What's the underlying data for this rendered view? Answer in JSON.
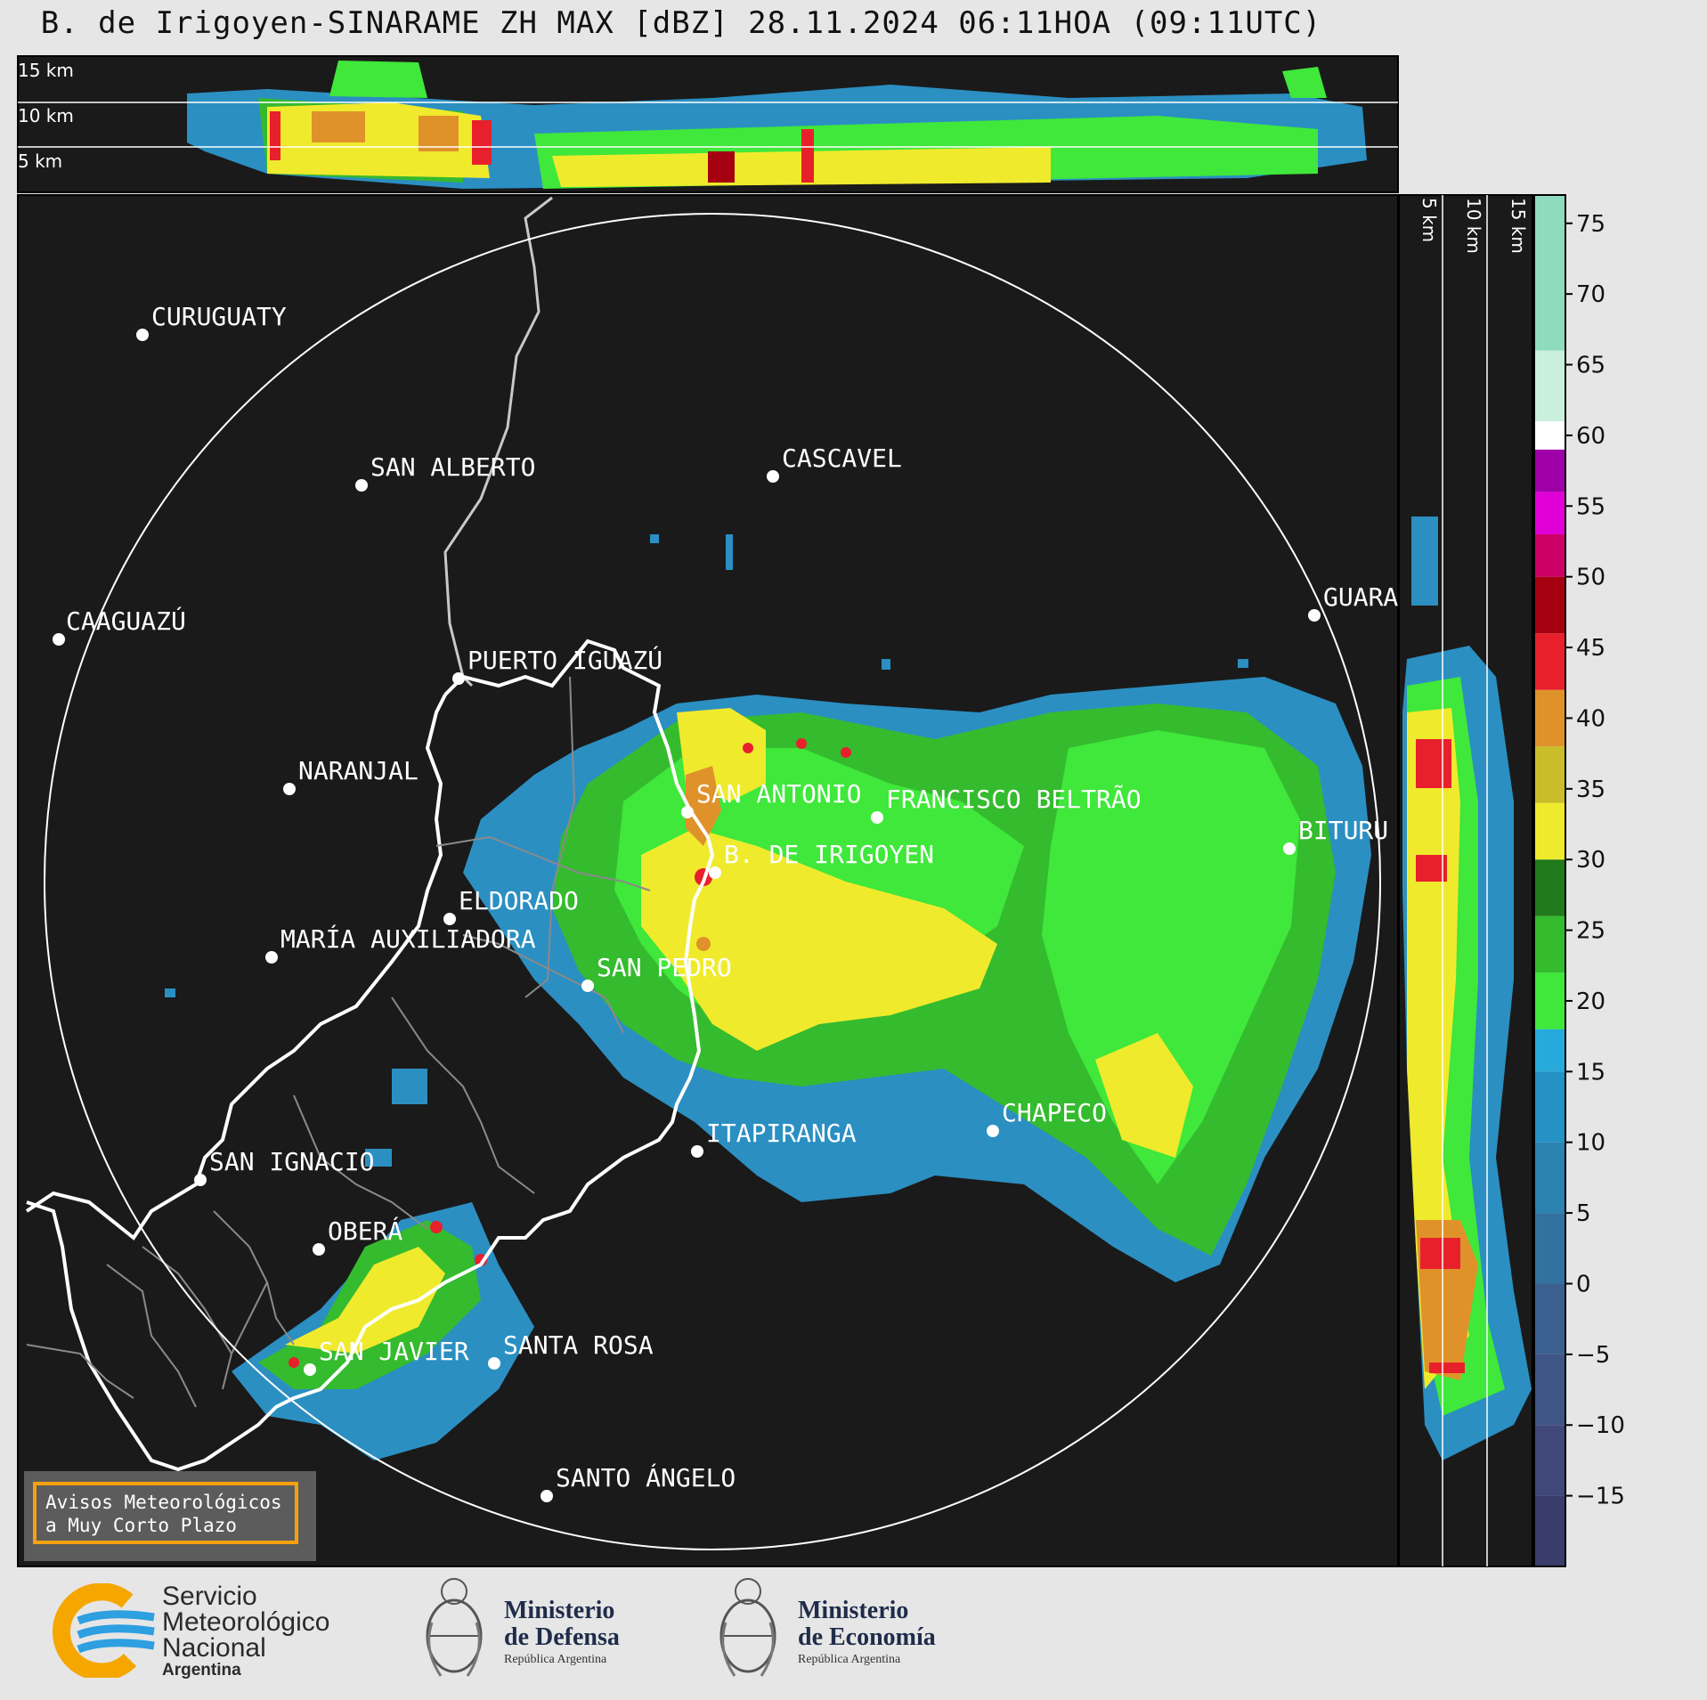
{
  "title": "B. de Irigoyen-SINARAME ZH MAX [dBZ] 28.11.2024 06:11HOA (09:11UTC)",
  "top_panel": {
    "height_labels": [
      "15 km",
      "10 km",
      "5 km"
    ]
  },
  "side_panel": {
    "height_labels": [
      "5 km",
      "10 km",
      "15 km"
    ]
  },
  "cities": [
    {
      "name": "CURUGUATY"
    },
    {
      "name": "SAN ALBERTO"
    },
    {
      "name": "CASCAVEL"
    },
    {
      "name": "CAAGUAZÚ"
    },
    {
      "name": "GUARA"
    },
    {
      "name": "PUERTO IGUAZÚ"
    },
    {
      "name": "NARANJAL"
    },
    {
      "name": "SAN ANTONIO"
    },
    {
      "name": "FRANCISCO BELTRÃO"
    },
    {
      "name": "BITURU"
    },
    {
      "name": "B. DE IRIGOYEN"
    },
    {
      "name": "ELDORADO"
    },
    {
      "name": "MARÍA AUXILIADORA"
    },
    {
      "name": "SAN PEDRO"
    },
    {
      "name": "CHAPECO"
    },
    {
      "name": "ITAPIRANGA"
    },
    {
      "name": "SAN IGNACIO"
    },
    {
      "name": "OBERÁ"
    },
    {
      "name": "SAN JAVIER"
    },
    {
      "name": "SANTA ROSA"
    },
    {
      "name": "SANTO ÁNGELO"
    }
  ],
  "colorbar": {
    "unit": "dBZ",
    "range": [
      -20,
      77
    ],
    "ticks": [
      "75",
      "70",
      "65",
      "60",
      "55",
      "50",
      "45",
      "40",
      "35",
      "30",
      "25",
      "20",
      "15",
      "10",
      "5",
      "0",
      "−5",
      "−10",
      "−15"
    ],
    "stops": [
      {
        "from": -20,
        "to": -15,
        "color": "#3a3d6b"
      },
      {
        "from": -15,
        "to": -10,
        "color": "#3f4878"
      },
      {
        "from": -10,
        "to": -5,
        "color": "#3f5585"
      },
      {
        "from": -5,
        "to": 0,
        "color": "#3b6090"
      },
      {
        "from": 0,
        "to": 5,
        "color": "#33729f"
      },
      {
        "from": 5,
        "to": 10,
        "color": "#2c82b1"
      },
      {
        "from": 10,
        "to": 15,
        "color": "#2592c4"
      },
      {
        "from": 15,
        "to": 18,
        "color": "#27aadb"
      },
      {
        "from": 18,
        "to": 22,
        "color": "#3fe83a"
      },
      {
        "from": 22,
        "to": 26,
        "color": "#35bb2e"
      },
      {
        "from": 26,
        "to": 30,
        "color": "#217a1c"
      },
      {
        "from": 30,
        "to": 34,
        "color": "#f0ea2d"
      },
      {
        "from": 34,
        "to": 38,
        "color": "#c9be2a"
      },
      {
        "from": 38,
        "to": 42,
        "color": "#e0922a"
      },
      {
        "from": 42,
        "to": 46,
        "color": "#e8202c"
      },
      {
        "from": 46,
        "to": 50,
        "color": "#a5000f"
      },
      {
        "from": 50,
        "to": 53,
        "color": "#cc0066"
      },
      {
        "from": 53,
        "to": 56,
        "color": "#e000d6"
      },
      {
        "from": 56,
        "to": 59,
        "color": "#a000a8"
      },
      {
        "from": 59,
        "to": 61,
        "color": "#ffffff"
      },
      {
        "from": 61,
        "to": 66,
        "color": "#c8f0dc"
      },
      {
        "from": 66,
        "to": 77,
        "color": "#8edbc0"
      }
    ]
  },
  "alert_box": {
    "line1": "Avisos Meteorológicos",
    "line2": "a Muy Corto Plazo",
    "border_color": "#f5a10f"
  },
  "logos": {
    "smn": {
      "line1": "Servicio",
      "line2": "Meteorológico",
      "line3": "Nacional",
      "line4": "Argentina"
    },
    "defensa": {
      "line1": "Ministerio",
      "line2": "de Defensa",
      "line3": "República Argentina"
    },
    "economia": {
      "line1": "Ministerio",
      "line2": "de Economía",
      "line3": "República Argentina"
    }
  },
  "colors": {
    "panel_bg": "#1a1a1a",
    "page_bg": "#e6e6e6",
    "range_ring": "#ffffff"
  }
}
